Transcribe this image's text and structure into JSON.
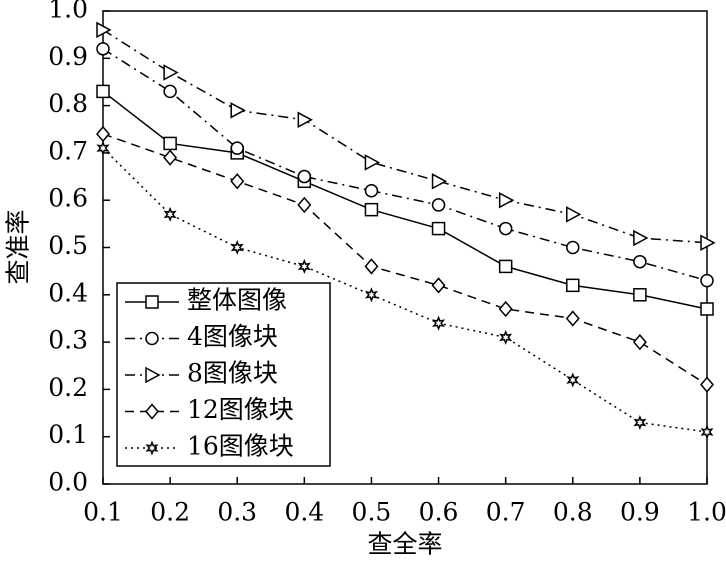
{
  "chart_data": {
    "type": "line",
    "xlabel": "查全率",
    "ylabel": "查准率",
    "x": [
      0.1,
      0.2,
      0.3,
      0.4,
      0.5,
      0.6,
      0.7,
      0.8,
      0.9,
      1
    ],
    "xlim": [
      0.1,
      1
    ],
    "ylim": [
      0,
      1
    ],
    "xticks": [
      0.1,
      0.2,
      0.3,
      0.4,
      0.5,
      0.6,
      0.7,
      0.8,
      0.9,
      {
        "value": 1,
        "label": "1.0"
      }
    ],
    "yticks": [
      {
        "value": 0,
        "label": "0.0"
      },
      0.1,
      0.2,
      0.3,
      0.4,
      0.5,
      0.6,
      0.7,
      0.8,
      0.9,
      {
        "value": 1,
        "label": "1.0"
      }
    ],
    "legend": "lower left",
    "series": [
      {
        "name": "整体图像",
        "color": "#000000",
        "marker": "square",
        "dash": "solid",
        "values": [
          0.83,
          0.72,
          0.7,
          0.64,
          0.58,
          0.54,
          0.46,
          0.42,
          0.4,
          0.37
        ]
      },
      {
        "name": "4图像块",
        "color": "#000000",
        "marker": "circle",
        "dash": "dashdot",
        "values": [
          0.92,
          0.83,
          0.71,
          0.65,
          0.62,
          0.59,
          0.54,
          0.5,
          0.47,
          0.43
        ]
      },
      {
        "name": "8图像块",
        "color": "#000000",
        "marker": "triangle-right",
        "dash": "dashdot",
        "values": [
          0.96,
          0.87,
          0.79,
          0.77,
          0.68,
          0.64,
          0.6,
          0.57,
          0.52,
          0.51
        ]
      },
      {
        "name": "12图像块",
        "color": "#000000",
        "marker": "diamond",
        "dash": "dashed",
        "values": [
          0.74,
          0.69,
          0.64,
          0.59,
          0.46,
          0.42,
          0.37,
          0.35,
          0.3,
          0.21
        ]
      },
      {
        "name": "16图像块",
        "color": "#000000",
        "marker": "star",
        "dash": "dotted",
        "values": [
          0.71,
          0.57,
          0.5,
          0.46,
          0.4,
          0.34,
          0.31,
          0.22,
          0.13,
          0.11
        ]
      }
    ]
  }
}
